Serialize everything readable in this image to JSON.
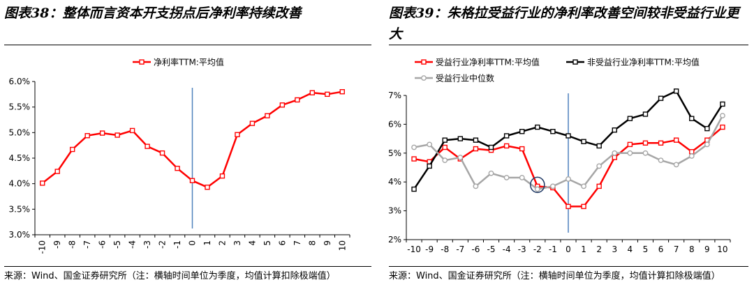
{
  "left": {
    "title": "图表38：整体而言资本开支拐点后净利率持续改善",
    "source": "来源：Wind、国金证券研究所（注：横轴时间单位为季度，均值计算扣除极端值）",
    "chart_data": {
      "type": "line",
      "x": [
        -10,
        -9,
        -8,
        -7,
        -6,
        -5,
        -4,
        -3,
        -2,
        -1,
        0,
        1,
        2,
        3,
        4,
        5,
        6,
        7,
        8,
        9,
        10
      ],
      "xticks": [
        "-10",
        "-9",
        "-8",
        "-7",
        "-6",
        "-5",
        "-4",
        "-3",
        "-2",
        "-1",
        "0",
        "1",
        "2",
        "3",
        "4",
        "5",
        "6",
        "7",
        "8",
        "9",
        "10"
      ],
      "ylim": [
        0.03,
        0.06
      ],
      "yticks": [
        0.03,
        0.035,
        0.04,
        0.045,
        0.05,
        0.055,
        0.06
      ],
      "yticklabels": [
        "3.0%",
        "3.5%",
        "4.0%",
        "4.5%",
        "5.0%",
        "5.5%",
        "6.0%"
      ],
      "vline_x": 0,
      "legend_position": "top",
      "series": [
        {
          "name": "净利率TTM:平均值",
          "color": "#ff0000",
          "values": [
            0.0401,
            0.0424,
            0.0467,
            0.0494,
            0.0499,
            0.0495,
            0.0504,
            0.0473,
            0.046,
            0.043,
            0.0406,
            0.0393,
            0.0415,
            0.0496,
            0.0518,
            0.0533,
            0.0554,
            0.0564,
            0.0578,
            0.0575,
            0.058
          ]
        }
      ]
    }
  },
  "right": {
    "title": "图表39：朱格拉受益行业的净利率改善空间较非受益行业更大",
    "source": "来源：Wind、国金证券研究所（注：横轴时间单位为季度，均值计算扣除极端值）",
    "chart_data": {
      "type": "line",
      "x": [
        -10,
        -9,
        -8,
        -7,
        -6,
        -5,
        -4,
        -3,
        -2,
        -1,
        0,
        1,
        2,
        3,
        4,
        5,
        6,
        7,
        8,
        9,
        10
      ],
      "xticks": [
        "-10",
        "-9",
        "-8",
        "-7",
        "-6",
        "-5",
        "-4",
        "-3",
        "-2",
        "-1",
        "0",
        "1",
        "2",
        "3",
        "4",
        "5",
        "6",
        "7",
        "8",
        "9",
        "10"
      ],
      "ylim": [
        0.02,
        0.07
      ],
      "yticks": [
        0.02,
        0.03,
        0.04,
        0.05,
        0.06,
        0.07
      ],
      "yticklabels": [
        "2%",
        "3%",
        "4%",
        "5%",
        "6%",
        "7%"
      ],
      "vline_x": 0,
      "annotation": {
        "type": "circle",
        "x": -2,
        "y": 0.039
      },
      "legend_position": "top",
      "series": [
        {
          "name": "受益行业净利率TTM:平均值",
          "color": "#ff0000",
          "values": [
            0.048,
            0.047,
            0.052,
            0.048,
            0.0515,
            0.051,
            0.0525,
            0.0515,
            0.0385,
            0.038,
            0.0315,
            0.0315,
            0.0385,
            0.0485,
            0.053,
            0.0535,
            0.0535,
            0.0545,
            0.0505,
            0.0545,
            0.059
          ]
        },
        {
          "name": "非受益行业净利率TTM:平均值",
          "color": "#000000",
          "values": [
            0.0375,
            0.0455,
            0.0545,
            0.055,
            0.0545,
            0.052,
            0.056,
            0.0575,
            0.059,
            0.0575,
            0.056,
            0.054,
            0.0525,
            0.058,
            0.062,
            0.0635,
            0.069,
            0.0715,
            0.062,
            0.0585,
            0.067
          ]
        },
        {
          "name": "受益行业中位数",
          "color": "#a6a6a6",
          "values": [
            0.052,
            0.053,
            0.0475,
            0.0485,
            0.0385,
            0.043,
            0.0415,
            0.0415,
            0.0375,
            0.0385,
            0.041,
            0.0385,
            0.0455,
            0.05,
            0.05,
            0.05,
            0.0475,
            0.046,
            0.049,
            0.053,
            0.063
          ]
        }
      ]
    }
  }
}
